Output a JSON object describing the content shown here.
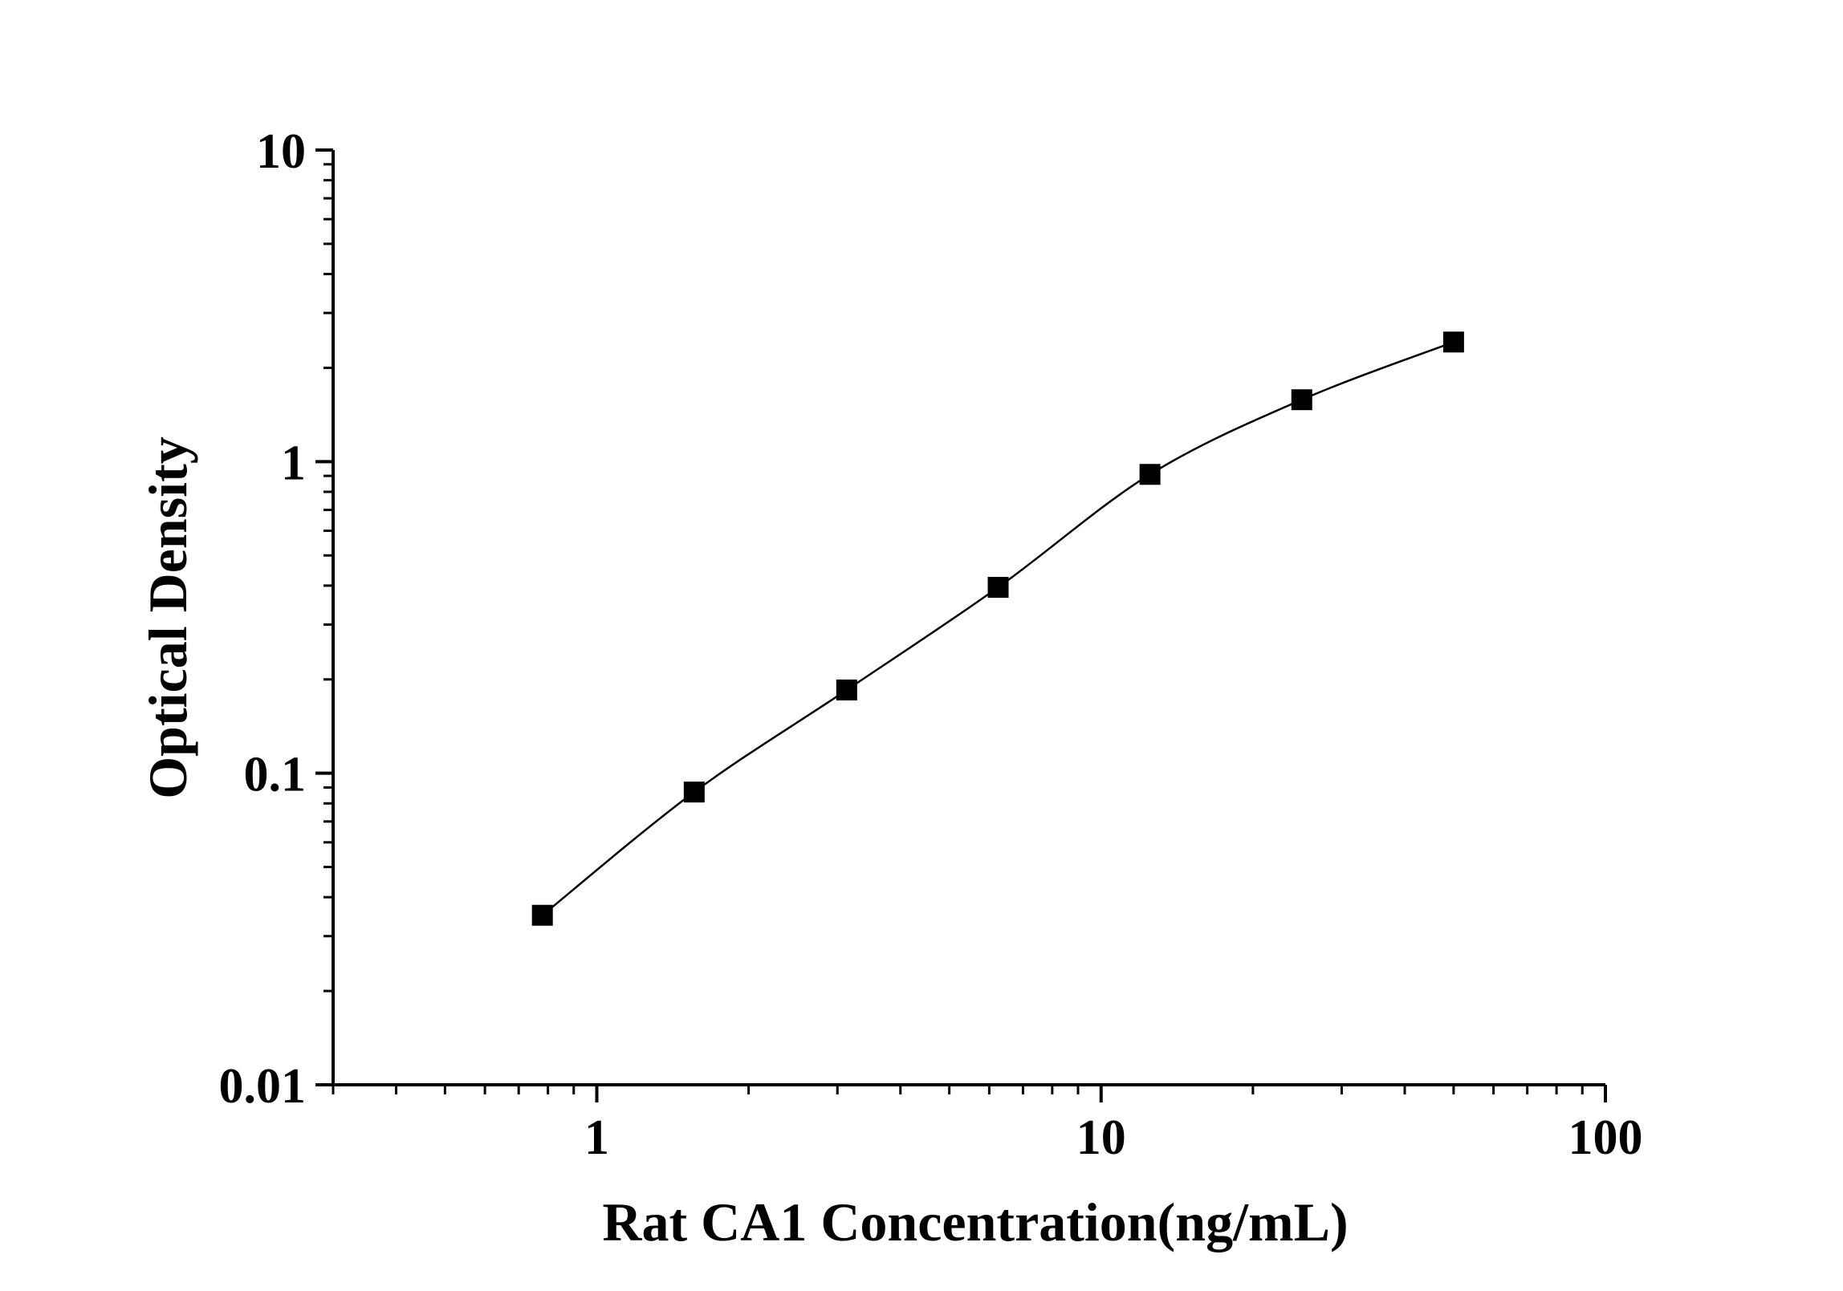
{
  "chart_data": {
    "type": "scatter",
    "title": "",
    "xlabel": "Rat CA1 Concentration(ng/mL)",
    "ylabel": "Optical Density",
    "xscale": "log",
    "yscale": "log",
    "xlim": [
      0.3,
      100
    ],
    "ylim": [
      0.01,
      10
    ],
    "x_ticks": [
      {
        "value": 1,
        "label": "1"
      },
      {
        "value": 10,
        "label": "10"
      },
      {
        "value": 100,
        "label": "100"
      }
    ],
    "y_ticks": [
      {
        "value": 0.01,
        "label": "0.01"
      },
      {
        "value": 0.1,
        "label": "0.1"
      },
      {
        "value": 1,
        "label": "1"
      },
      {
        "value": 10,
        "label": "10"
      }
    ],
    "grid": false,
    "legend": "none",
    "series": [
      {
        "x": [
          0.78,
          1.56,
          3.13,
          6.25,
          12.5,
          25,
          50
        ],
        "y": [
          0.035,
          0.087,
          0.185,
          0.395,
          0.91,
          1.58,
          2.42
        ],
        "marker": "square",
        "line": "smooth-curve",
        "color": "#000000"
      }
    ]
  }
}
